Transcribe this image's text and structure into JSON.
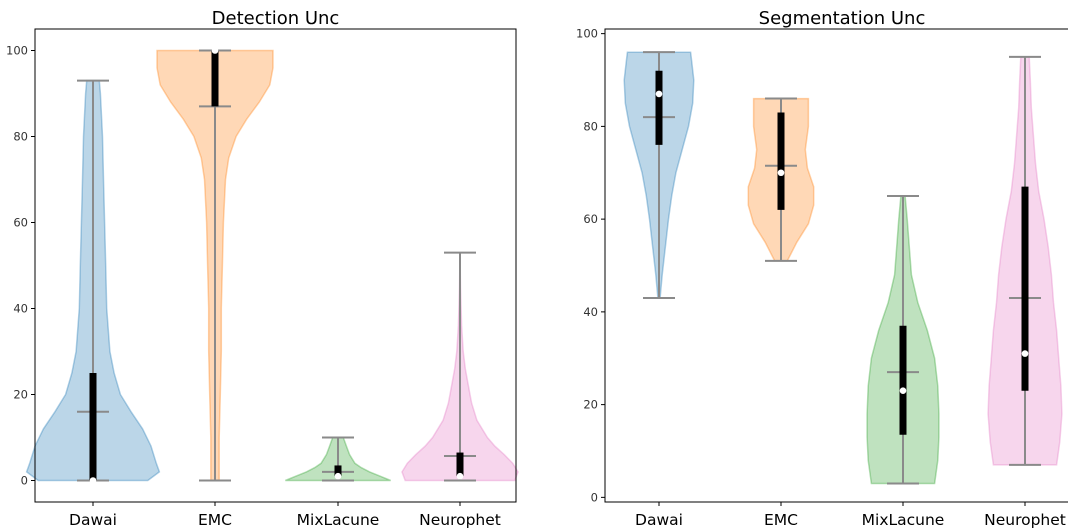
{
  "chart_data": [
    {
      "type": "violin",
      "title": "Detection Unc",
      "xlabel": "",
      "ylabel": "",
      "ylim": [
        -5,
        105
      ],
      "yticks": [
        0,
        20,
        40,
        60,
        80,
        100
      ],
      "grid": false,
      "categories": [
        "Dawai",
        "EMC",
        "MixLacune",
        "Neurophet"
      ],
      "colors": [
        "#1f77b4",
        "#ff7f0e",
        "#2ca02c",
        "#e377c2"
      ],
      "violins": [
        {
          "label": "Dawai",
          "min": 0,
          "max": 93,
          "mean": 16,
          "median": 0,
          "q1": 0,
          "q3": 25,
          "density": [
            [
              0,
              0.52
            ],
            [
              2,
              0.63
            ],
            [
              4,
              0.6
            ],
            [
              8,
              0.55
            ],
            [
              12,
              0.47
            ],
            [
              16,
              0.36
            ],
            [
              20,
              0.26
            ],
            [
              25,
              0.2
            ],
            [
              30,
              0.16
            ],
            [
              40,
              0.13
            ],
            [
              50,
              0.12
            ],
            [
              60,
              0.11
            ],
            [
              70,
              0.1
            ],
            [
              80,
              0.09
            ],
            [
              90,
              0.07
            ],
            [
              93,
              0.06
            ]
          ]
        },
        {
          "label": "EMC",
          "min": 0,
          "max": 100,
          "mean": 87,
          "median": 100,
          "q1": 87,
          "q3": 100,
          "density": [
            [
              0,
              0.04
            ],
            [
              10,
              0.04
            ],
            [
              20,
              0.05
            ],
            [
              30,
              0.06
            ],
            [
              40,
              0.06
            ],
            [
              50,
              0.07
            ],
            [
              60,
              0.08
            ],
            [
              70,
              0.1
            ],
            [
              75,
              0.13
            ],
            [
              80,
              0.2
            ],
            [
              84,
              0.3
            ],
            [
              88,
              0.42
            ],
            [
              92,
              0.52
            ],
            [
              96,
              0.55
            ],
            [
              100,
              0.55
            ]
          ]
        },
        {
          "label": "MixLacune",
          "min": 0,
          "max": 10,
          "mean": 2,
          "median": 1,
          "q1": 1,
          "q3": 3.5,
          "density": [
            [
              0,
              0.5
            ],
            [
              1,
              0.4
            ],
            [
              2,
              0.3
            ],
            [
              3,
              0.22
            ],
            [
              4,
              0.16
            ],
            [
              6,
              0.11
            ],
            [
              8,
              0.08
            ],
            [
              10,
              0.05
            ]
          ]
        },
        {
          "label": "Neurophet",
          "min": 0,
          "max": 53,
          "mean": 5.7,
          "median": 1,
          "q1": 1,
          "q3": 6.5,
          "density": [
            [
              0,
              0.52
            ],
            [
              2,
              0.55
            ],
            [
              4,
              0.5
            ],
            [
              6,
              0.42
            ],
            [
              8,
              0.33
            ],
            [
              10,
              0.26
            ],
            [
              14,
              0.16
            ],
            [
              18,
              0.11
            ],
            [
              22,
              0.08
            ],
            [
              26,
              0.05
            ],
            [
              30,
              0.03
            ],
            [
              36,
              0.015
            ],
            [
              45,
              0.005
            ],
            [
              53,
              0.0
            ]
          ]
        }
      ]
    },
    {
      "type": "violin",
      "title": "Segmentation Unc",
      "xlabel": "",
      "ylabel": "",
      "ylim": [
        -1,
        101
      ],
      "yticks": [
        0,
        20,
        40,
        60,
        80,
        100
      ],
      "grid": false,
      "categories": [
        "Dawai",
        "EMC",
        "MixLacune",
        "Neurophet"
      ],
      "colors": [
        "#1f77b4",
        "#ff7f0e",
        "#2ca02c",
        "#e377c2"
      ],
      "violins": [
        {
          "label": "Dawai",
          "min": 43,
          "max": 96,
          "mean": 82,
          "median": 87,
          "q1": 76,
          "q3": 92,
          "density": [
            [
              43,
              0.01
            ],
            [
              48,
              0.03
            ],
            [
              52,
              0.05
            ],
            [
              56,
              0.07
            ],
            [
              60,
              0.09
            ],
            [
              65,
              0.12
            ],
            [
              70,
              0.16
            ],
            [
              75,
              0.22
            ],
            [
              80,
              0.28
            ],
            [
              85,
              0.32
            ],
            [
              90,
              0.33
            ],
            [
              94,
              0.31
            ],
            [
              96,
              0.3
            ]
          ]
        },
        {
          "label": "EMC",
          "min": 51,
          "max": 86,
          "mean": 71.5,
          "median": 70,
          "q1": 62,
          "q3": 83,
          "density": [
            [
              51,
              0.06
            ],
            [
              55,
              0.15
            ],
            [
              59,
              0.26
            ],
            [
              63,
              0.31
            ],
            [
              67,
              0.31
            ],
            [
              71,
              0.25
            ],
            [
              75,
              0.23
            ],
            [
              80,
              0.26
            ],
            [
              84,
              0.26
            ],
            [
              86,
              0.26
            ]
          ]
        },
        {
          "label": "MixLacune",
          "min": 3,
          "max": 65,
          "mean": 27,
          "median": 23,
          "q1": 13.5,
          "q3": 37,
          "density": [
            [
              3,
              0.3
            ],
            [
              8,
              0.33
            ],
            [
              13,
              0.34
            ],
            [
              18,
              0.34
            ],
            [
              24,
              0.33
            ],
            [
              30,
              0.3
            ],
            [
              36,
              0.23
            ],
            [
              42,
              0.14
            ],
            [
              48,
              0.08
            ],
            [
              54,
              0.06
            ],
            [
              60,
              0.04
            ],
            [
              65,
              0.02
            ]
          ]
        },
        {
          "label": "Neurophet",
          "min": 7,
          "max": 95,
          "mean": 43,
          "median": 31,
          "q1": 23,
          "q3": 67,
          "density": [
            [
              7,
              0.3
            ],
            [
              12,
              0.33
            ],
            [
              18,
              0.35
            ],
            [
              24,
              0.34
            ],
            [
              30,
              0.32
            ],
            [
              36,
              0.3
            ],
            [
              42,
              0.27
            ],
            [
              48,
              0.25
            ],
            [
              54,
              0.22
            ],
            [
              60,
              0.18
            ],
            [
              66,
              0.13
            ],
            [
              72,
              0.1
            ],
            [
              78,
              0.08
            ],
            [
              84,
              0.06
            ],
            [
              90,
              0.05
            ],
            [
              95,
              0.04
            ]
          ]
        }
      ]
    }
  ]
}
